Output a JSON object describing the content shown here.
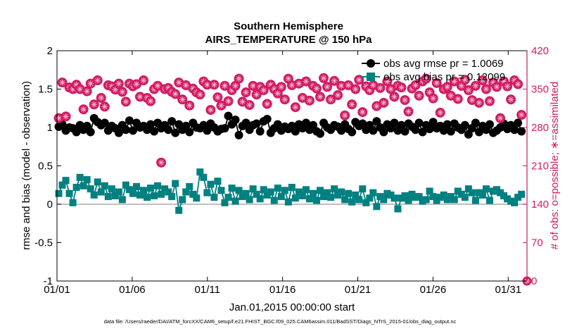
{
  "chart_data": {
    "type": "line",
    "title": "Southern Hemisphere",
    "subtitle": "AIRS_TEMPERATURE @ 150 hPa",
    "xlabel": "Jan.01,2015 00:00:00 start",
    "ylabel": "rmse and bias (model - observation)",
    "y2label": "# of obs: o=possible; ∗=assimilated",
    "xlim": [
      1,
      32.25
    ],
    "ylim": [
      -1,
      2
    ],
    "y2lim": [
      0,
      420
    ],
    "x_ticks": [
      1,
      6,
      11,
      16,
      21,
      26,
      31
    ],
    "x_tick_labels": [
      "01/01",
      "01/06",
      "01/11",
      "01/16",
      "01/21",
      "01/26",
      "01/31"
    ],
    "y_ticks": [
      -1,
      -0.5,
      0,
      0.5,
      1,
      1.5,
      2
    ],
    "y_tick_labels": [
      "-1",
      "-0.5",
      "0",
      "0.5",
      "1",
      "1.5",
      "2"
    ],
    "y2_ticks": [
      0,
      70,
      140,
      210,
      280,
      350,
      420
    ],
    "y2_tick_labels": [
      "0",
      "70",
      "140",
      "210",
      "280",
      "350",
      "420"
    ],
    "reference_line": 0,
    "legend_position": "top-right",
    "colors": {
      "rmse": "#000000",
      "bias": "#008080",
      "count": "#d01c62",
      "axis_right": "#d01c62",
      "zero_line": "#aaaaaa"
    },
    "series": [
      {
        "name": "obs avg rmse pr = 1.0069",
        "axis": "left",
        "marker": "circle",
        "values": [
          1.01,
          1.04,
          0.96,
          1.0,
          0.99,
          0.94,
          1.03,
          0.97,
          1.02,
          0.94,
          1.12,
          1.07,
          1.03,
          1.06,
          0.96,
          1.02,
          0.99,
          0.93,
          1.03,
          0.97,
          1.09,
          0.96,
          1.06,
          1.0,
          1.02,
          0.97,
          1.04,
          0.95,
          1.06,
          0.99,
          1.03,
          0.97,
          1.08,
          0.93,
          1.04,
          0.97,
          1.02,
          0.94,
          1.06,
          1.0,
          0.99,
          1.03,
          0.96,
          1.05,
          1.0,
          0.95,
          0.98,
          0.99,
          1.15,
          1.04,
          1.1,
          0.9,
          1.02,
          1.06,
          0.97,
          1.03,
          1.05,
          0.95,
          1.08,
          1.11,
          0.93,
          0.99,
          1.04,
          0.96,
          1.01,
          0.98,
          1.02,
          0.95,
          1.04,
          0.99,
          1.06,
          0.97,
          1.03,
          0.95,
          0.92,
          1.06,
          1.0,
          0.97,
          1.03,
          1.01,
          0.96,
          1.04,
          0.98,
          0.94,
          1.07,
          1.02,
          1.05,
          0.97,
          1.03,
          0.96,
          1.08,
          1.0,
          0.94,
          1.04,
          0.99,
          1.06,
          0.96,
          1.03,
          0.95,
          1.05,
          1.01,
          0.97,
          1.06,
          0.94,
          1.03,
          0.98,
          1.07,
          0.99,
          1.02,
          0.96,
          1.04,
          0.95,
          1.05,
          1.0,
          0.97,
          1.03,
          0.91,
          0.99,
          1.06,
          0.94,
          1.02,
          0.97,
          1.04,
          0.93,
          0.96,
          1.0,
          1.05,
          0.98,
          1.03,
          0.97,
          1.06,
          0.95
        ]
      },
      {
        "name": "obs avg bias pr = 0.12099",
        "axis": "left",
        "marker": "square",
        "values": [
          0.14,
          0.25,
          0.31,
          0.14,
          0.02,
          0.22,
          0.35,
          0.24,
          0.32,
          0.2,
          0.12,
          0.29,
          0.16,
          0.24,
          0.1,
          0.2,
          0.11,
          0.16,
          0.06,
          0.25,
          0.19,
          0.14,
          0.23,
          0.12,
          0.18,
          0.09,
          0.21,
          0.11,
          0.24,
          0.13,
          0.2,
          0.16,
          0.1,
          0.27,
          -0.08,
          0.06,
          0.16,
          0.23,
          0.13,
          0.08,
          0.42,
          0.35,
          0.15,
          0.26,
          0.09,
          0.3,
          0.18,
          0.02,
          0.09,
          0.21,
          0.04,
          0.18,
          0.1,
          0.14,
          0.06,
          0.2,
          0.13,
          0.07,
          0.19,
          0.12,
          0.16,
          0.05,
          0.21,
          0.1,
          0.18,
          0.03,
          0.22,
          0.08,
          0.16,
          0.11,
          0.19,
          0.07,
          0.14,
          0.05,
          0.18,
          0.1,
          0.15,
          0.09,
          0.2,
          0.12,
          0.16,
          0.06,
          0.14,
          0.03,
          0.12,
          0.06,
          0.2,
          0.02,
          0.08,
          0.15,
          -0.03,
          0.1,
          0.06,
          0.14,
          0.12,
          0.08,
          -0.06,
          0.08,
          0.11,
          0.05,
          0.13,
          0.09,
          0.1,
          0.04,
          0.06,
          0.17,
          0.1,
          0.05,
          0.09,
          0.12,
          0.06,
          0.1,
          0.06,
          0.17,
          0.13,
          0.09,
          0.2,
          0.15,
          0.05,
          0.15,
          0.12,
          0.2,
          0.05,
          0.17,
          0.19,
          0.15,
          0.11,
          0.07,
          0.04,
          0.02,
          0.09,
          0.13
        ]
      },
      {
        "name": "# of obs possible",
        "axis": "right",
        "marker": "circle-open",
        "values": [
          297,
          362,
          300,
          353,
          350,
          358,
          350,
          313,
          346,
          360,
          322,
          366,
          334,
          318,
          357,
          355,
          349,
          360,
          345,
          327,
          360,
          355,
          359,
          336,
          366,
          334,
          328,
          350,
          356,
          216,
          350,
          352,
          345,
          341,
          362,
          331,
          357,
          320,
          351,
          344,
          340,
          364,
          358,
          312,
          358,
          335,
          320,
          356,
          328,
          348,
          356,
          369,
          327,
          344,
          321,
          356,
          340,
          354,
          348,
          323,
          358,
          350,
          342,
          354,
          331,
          369,
          357,
          317,
          360,
          334,
          364,
          329,
          356,
          351,
          336,
          370,
          354,
          331,
          365,
          339,
          356,
          302,
          357,
          322,
          350,
          367,
          308,
          355,
          348,
          357,
          319,
          352,
          325,
          364,
          350,
          336,
          356,
          353,
          330,
          309,
          351,
          357,
          338,
          364,
          369,
          344,
          333,
          361,
          307,
          350,
          354,
          338,
          364,
          332,
          356,
          367,
          348,
          330,
          356,
          325,
          366,
          350,
          328,
          362,
          354,
          297,
          364,
          355,
          331,
          366,
          359,
          303
        ]
      }
    ]
  },
  "footer": "data file: /Users/raeder/DAI/ATM_forcXX/CAM6_setup/f.e21.FHIST_BGC.f09_025.CAM6assim.011/BadSST/Diags_NTrS_2015-01/obs_diag_output.nc"
}
